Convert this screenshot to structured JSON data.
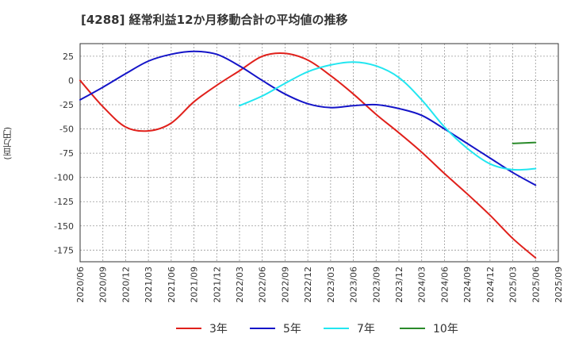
{
  "chart_data": {
    "type": "line",
    "title": "[4288]  経常利益12か月移動合計の平均値の推移",
    "ylabel": "(百万円)",
    "xlabel": "",
    "ylim": [
      -187,
      38
    ],
    "yticks": [
      25,
      0,
      -25,
      -50,
      -75,
      -100,
      -125,
      -150,
      -175
    ],
    "categories": [
      "2020/06",
      "2020/09",
      "2020/12",
      "2021/03",
      "2021/06",
      "2021/09",
      "2021/12",
      "2022/03",
      "2022/06",
      "2022/09",
      "2022/12",
      "2023/03",
      "2023/06",
      "2023/09",
      "2023/12",
      "2024/03",
      "2024/06",
      "2024/09",
      "2024/12",
      "2025/03",
      "2025/06",
      "2025/09"
    ],
    "grid": true,
    "legend_position": "bottom",
    "series": [
      {
        "name": "3年",
        "color": "#e0201b",
        "values": [
          0,
          -27,
          -48,
          -52,
          -44,
          -22,
          -5,
          10,
          25,
          28,
          21,
          5,
          -14,
          -35,
          -54,
          -74,
          -96,
          -117,
          -139,
          -163,
          -183,
          null
        ]
      },
      {
        "name": "5年",
        "color": "#1414c8",
        "values": [
          -20,
          -7,
          7,
          20,
          27,
          30,
          27,
          15,
          0,
          -14,
          -24,
          -28,
          -26,
          -25,
          -29,
          -36,
          -50,
          -65,
          -80,
          -95,
          -108,
          null
        ]
      },
      {
        "name": "7年",
        "color": "#22e6f0",
        "values": [
          null,
          null,
          null,
          null,
          null,
          null,
          null,
          -26,
          -16,
          -3,
          9,
          16,
          19,
          15,
          3,
          -20,
          -48,
          -70,
          -86,
          -92,
          -91,
          null
        ]
      },
      {
        "name": "10年",
        "color": "#2a8a2a",
        "values": [
          null,
          null,
          null,
          null,
          null,
          null,
          null,
          null,
          null,
          null,
          null,
          null,
          null,
          null,
          null,
          null,
          null,
          null,
          null,
          -65,
          -64,
          null
        ]
      }
    ]
  }
}
